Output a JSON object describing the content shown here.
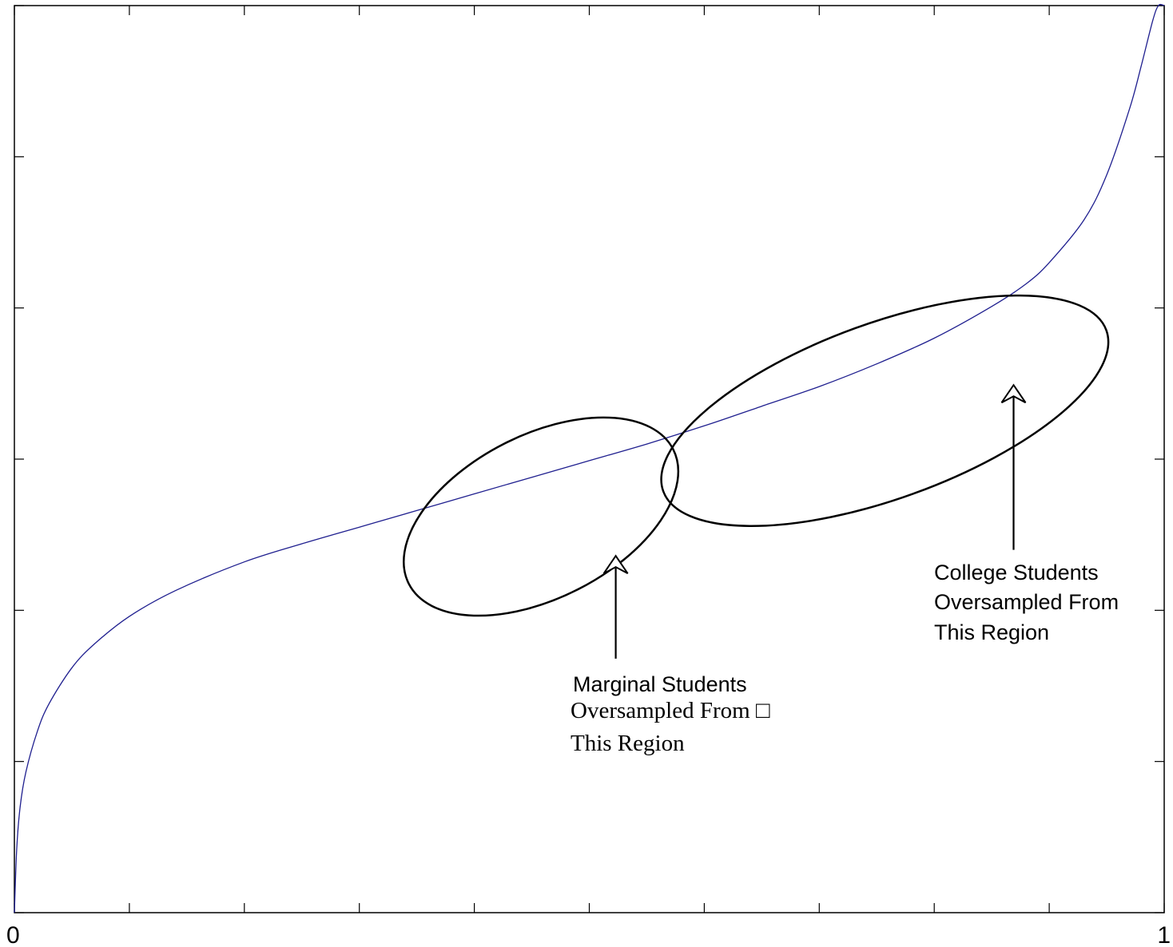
{
  "chart_data": {
    "type": "line",
    "title": "",
    "xlabel": "",
    "ylabel": "",
    "xlim": [
      0,
      1
    ],
    "ylim": [
      0,
      6
    ],
    "x_ticks": [
      0,
      0.1,
      0.2,
      0.3,
      0.4,
      0.5,
      0.6,
      0.7,
      0.8,
      0.9,
      1
    ],
    "x_tick_labels": [
      "0",
      "",
      "",
      "",
      "",
      "",
      "",
      "",
      "",
      "",
      "1"
    ],
    "y_ticks": [
      0,
      1,
      2,
      3,
      4,
      5,
      6
    ],
    "grid": false,
    "series": [
      {
        "color": "#1f1f8f",
        "x": [
          0,
          0.002,
          0.005,
          0.01,
          0.02,
          0.03,
          0.05,
          0.07,
          0.1,
          0.14,
          0.2,
          0.25,
          0.3,
          0.35,
          0.4,
          0.45,
          0.5,
          0.55,
          0.6,
          0.65,
          0.7,
          0.75,
          0.8,
          0.85,
          0.88,
          0.9,
          0.93,
          0.95,
          0.97,
          0.98,
          0.99,
          0.995,
          1.0
        ],
        "y": [
          0,
          0.42,
          0.7,
          0.93,
          1.2,
          1.38,
          1.62,
          1.78,
          1.96,
          2.13,
          2.32,
          2.44,
          2.55,
          2.66,
          2.77,
          2.88,
          2.99,
          3.1,
          3.22,
          3.35,
          3.48,
          3.63,
          3.8,
          4.01,
          4.16,
          4.3,
          4.58,
          4.88,
          5.32,
          5.6,
          5.9,
          6.0,
          6.0
        ]
      }
    ],
    "ellipses": [
      {
        "name": "marginal-region",
        "cx": 0.458,
        "cy": 2.62,
        "rx": 0.129,
        "ry": 0.54,
        "rotation_deg": -27
      },
      {
        "name": "college-region",
        "cx": 0.757,
        "cy": 3.32,
        "rx": 0.205,
        "ry": 0.58,
        "rotation_deg": -20
      }
    ],
    "arrows": [
      {
        "name": "marginal-arrow",
        "x": 0.523,
        "from_y": 1.68,
        "to_y": 2.36
      },
      {
        "name": "college-arrow",
        "x": 0.869,
        "from_y": 2.4,
        "to_y": 3.49
      }
    ],
    "annotations": {
      "marginal": {
        "line1": "Marginal Students",
        "line2": "Oversampled From □",
        "line3": "This Region"
      },
      "college": {
        "line1": "College Students",
        "line2": "Oversampled From",
        "line3": "This Region"
      }
    }
  }
}
